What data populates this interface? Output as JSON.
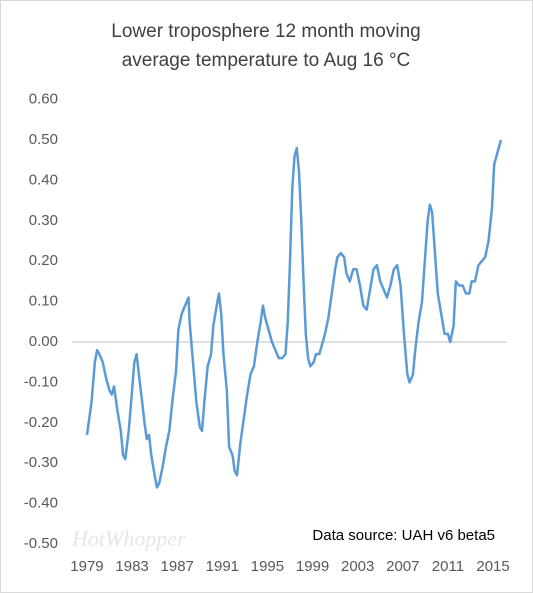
{
  "chart_data": {
    "type": "line",
    "title": [
      "Lower troposphere 12 month moving",
      "average temperature to Aug 16 °C"
    ],
    "annotation": "Data source: UAH v6 beta5",
    "watermark": "HotWhopper",
    "x": [
      1979.0,
      1979.4,
      1979.7,
      1979.9,
      1980.1,
      1980.4,
      1980.7,
      1981.0,
      1981.2,
      1981.4,
      1981.7,
      1982.0,
      1982.2,
      1982.4,
      1982.7,
      1983.0,
      1983.2,
      1983.4,
      1983.6,
      1983.9,
      1984.1,
      1984.3,
      1984.5,
      1984.7,
      1985.0,
      1985.2,
      1985.4,
      1985.7,
      1986.0,
      1986.3,
      1986.6,
      1986.9,
      1987.1,
      1987.4,
      1987.7,
      1988.0,
      1988.1,
      1988.4,
      1988.7,
      1989.0,
      1989.2,
      1989.4,
      1989.7,
      1990.0,
      1990.2,
      1990.5,
      1990.7,
      1990.9,
      1991.1,
      1991.4,
      1991.6,
      1991.9,
      1992.1,
      1992.3,
      1992.6,
      1992.9,
      1993.2,
      1993.5,
      1993.8,
      1994.1,
      1994.4,
      1994.6,
      1994.8,
      1995.1,
      1995.4,
      1995.7,
      1996.0,
      1996.3,
      1996.6,
      1996.8,
      1997.0,
      1997.2,
      1997.4,
      1997.6,
      1997.8,
      1998.0,
      1998.2,
      1998.4,
      1998.6,
      1998.8,
      1999.1,
      1999.3,
      1999.6,
      1999.9,
      2000.1,
      2000.4,
      2000.7,
      2001.0,
      2001.2,
      2001.5,
      2001.8,
      2002.0,
      2002.3,
      2002.6,
      2002.9,
      2003.2,
      2003.5,
      2003.8,
      2004.1,
      2004.4,
      2004.7,
      2005.0,
      2005.3,
      2005.6,
      2005.9,
      2006.2,
      2006.5,
      2006.8,
      2007.1,
      2007.4,
      2007.6,
      2007.9,
      2008.1,
      2008.4,
      2008.7,
      2009.0,
      2009.2,
      2009.4,
      2009.6,
      2009.9,
      2010.1,
      2010.4,
      2010.7,
      2011.0,
      2011.2,
      2011.5,
      2011.7,
      2012.0,
      2012.3,
      2012.6,
      2012.9,
      2013.1,
      2013.4,
      2013.7,
      2014.0,
      2014.3,
      2014.6,
      2014.9,
      2015.1,
      2015.4,
      2015.7
    ],
    "series": [
      {
        "name": "12 month moving average",
        "color": "#5b9bd5",
        "values": [
          -0.23,
          -0.15,
          -0.05,
          -0.02,
          -0.03,
          -0.05,
          -0.09,
          -0.12,
          -0.13,
          -0.11,
          -0.17,
          -0.22,
          -0.28,
          -0.29,
          -0.22,
          -0.12,
          -0.05,
          -0.03,
          -0.08,
          -0.15,
          -0.2,
          -0.24,
          -0.23,
          -0.28,
          -0.33,
          -0.36,
          -0.35,
          -0.31,
          -0.26,
          -0.22,
          -0.14,
          -0.07,
          0.03,
          0.07,
          0.09,
          0.11,
          0.05,
          -0.05,
          -0.15,
          -0.21,
          -0.22,
          -0.15,
          -0.06,
          -0.03,
          0.04,
          0.09,
          0.12,
          0.07,
          -0.03,
          -0.12,
          -0.26,
          -0.28,
          -0.32,
          -0.33,
          -0.25,
          -0.19,
          -0.13,
          -0.08,
          -0.06,
          0.0,
          0.05,
          0.09,
          0.06,
          0.03,
          0.0,
          -0.02,
          -0.04,
          -0.04,
          -0.03,
          0.05,
          0.2,
          0.38,
          0.46,
          0.48,
          0.42,
          0.3,
          0.15,
          0.02,
          -0.04,
          -0.06,
          -0.05,
          -0.03,
          -0.03,
          0.0,
          0.02,
          0.06,
          0.12,
          0.18,
          0.21,
          0.22,
          0.21,
          0.17,
          0.15,
          0.18,
          0.18,
          0.14,
          0.09,
          0.08,
          0.13,
          0.18,
          0.19,
          0.15,
          0.13,
          0.11,
          0.14,
          0.18,
          0.19,
          0.14,
          0.02,
          -0.08,
          -0.1,
          -0.08,
          -0.02,
          0.05,
          0.1,
          0.22,
          0.3,
          0.34,
          0.32,
          0.2,
          0.12,
          0.07,
          0.02,
          0.02,
          0.0,
          0.04,
          0.15,
          0.14,
          0.14,
          0.12,
          0.12,
          0.15,
          0.15,
          0.19,
          0.2,
          0.21,
          0.25,
          0.33,
          0.44,
          0.47,
          0.5
        ]
      }
    ],
    "xlim": [
      1977.7,
      2016.2
    ],
    "xticks": [
      1979,
      1983,
      1987,
      1991,
      1995,
      1999,
      2003,
      2007,
      2011,
      2015
    ],
    "ylim": [
      -0.5,
      0.6
    ],
    "yticks": [
      {
        "value": -0.5,
        "label": "-0.50"
      },
      {
        "value": -0.4,
        "label": "-0.40"
      },
      {
        "value": -0.3,
        "label": "-0.30"
      },
      {
        "value": -0.2,
        "label": "-0.20"
      },
      {
        "value": -0.1,
        "label": "-0.10"
      },
      {
        "value": 0,
        "label": "0.00"
      },
      {
        "value": 0.1,
        "label": "0.10"
      },
      {
        "value": 0.2,
        "label": "0.20"
      },
      {
        "value": 0.3,
        "label": "0.30"
      },
      {
        "value": 0.4,
        "label": "0.40"
      },
      {
        "value": 0.5,
        "label": "0.50"
      },
      {
        "value": 0.6,
        "label": "0.60"
      }
    ],
    "grid": false
  }
}
